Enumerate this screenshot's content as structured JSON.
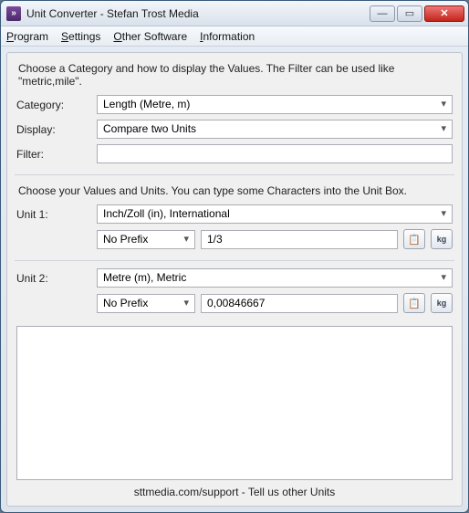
{
  "window": {
    "title": "Unit Converter - Stefan Trost Media"
  },
  "menu": {
    "program": "Program",
    "settings": "Settings",
    "other_software": "Other Software",
    "information": "Information"
  },
  "section1": {
    "instruction": "Choose a Category and how to display the Values. The Filter can be used like \"metric,mile\".",
    "category_label": "Category:",
    "category_value": "Length (Metre, m)",
    "display_label": "Display:",
    "display_value": "Compare two Units",
    "filter_label": "Filter:",
    "filter_value": ""
  },
  "section2": {
    "instruction": "Choose your Values and Units. You can type some Characters into the Unit Box.",
    "unit1_label": "Unit 1:",
    "unit1_value": "Inch/Zoll (in), International",
    "unit1_prefix": "No Prefix",
    "unit1_input": "1/3",
    "unit2_label": "Unit 2:",
    "unit2_value": "Metre (m), Metric",
    "unit2_prefix": "No Prefix",
    "unit2_input": "0,00846667"
  },
  "footer": {
    "text": "sttmedia.com/support - Tell us other Units"
  },
  "icons": {
    "copy_glyph": "📋",
    "unit_glyph": "kg"
  },
  "colors": {
    "window_border": "#3a5a7a",
    "close_red": "#c32418",
    "field_border": "#abadb3",
    "client_bg": "#f0f0f0"
  }
}
